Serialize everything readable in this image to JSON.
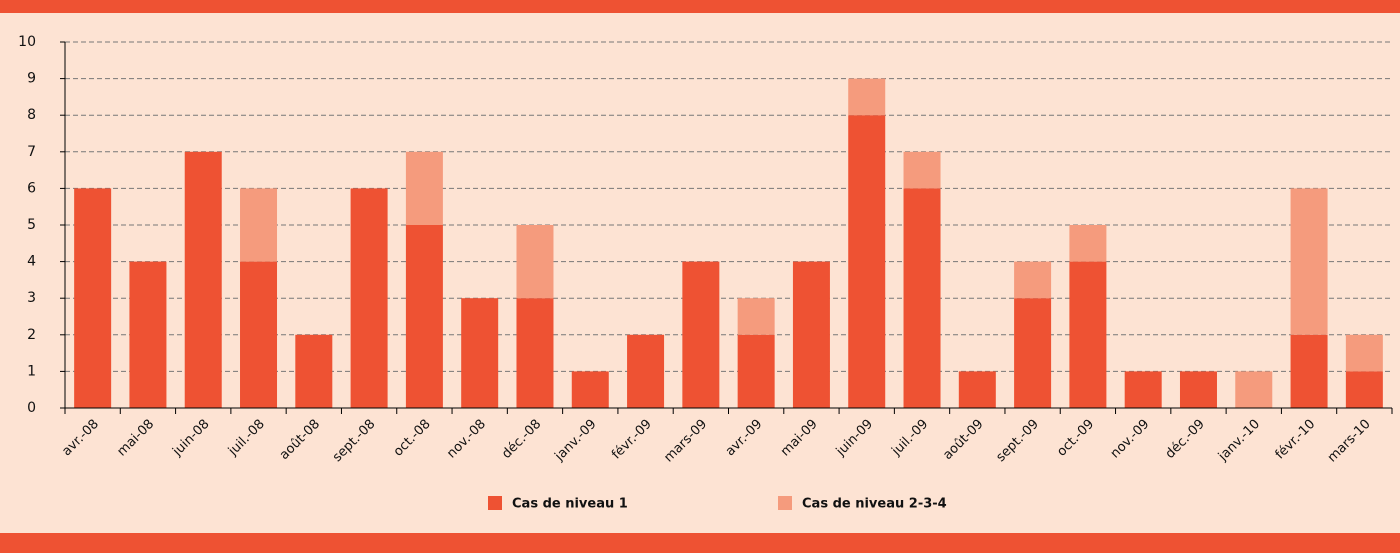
{
  "chart_data": {
    "type": "stacked-bar",
    "categories": [
      "avr.-08",
      "mai-08",
      "juin-08",
      "juil.-08",
      "août-08",
      "sept.-08",
      "oct.-08",
      "nov.-08",
      "déc.-08",
      "janv.-09",
      "févr.-09",
      "mars-09",
      "avr.-09",
      "mai-09",
      "juin-09",
      "juil.-09",
      "août-09",
      "sept.-09",
      "oct.-09",
      "nov.-09",
      "déc.-09",
      "janv.-10",
      "févr.-10",
      "mars-10"
    ],
    "series": [
      {
        "name": "Cas de niveau 1",
        "color": "#ee5233",
        "values": [
          6,
          4,
          7,
          4,
          2,
          6,
          5,
          3,
          3,
          1,
          2,
          4,
          2,
          4,
          8,
          6,
          1,
          3,
          4,
          1,
          1,
          0,
          2,
          1
        ]
      },
      {
        "name": "Cas de niveau 2-3-4",
        "color": "#f59b7d",
        "values": [
          0,
          0,
          0,
          2,
          0,
          0,
          2,
          0,
          2,
          0,
          0,
          0,
          1,
          0,
          1,
          1,
          0,
          1,
          1,
          0,
          0,
          1,
          4,
          1
        ]
      }
    ],
    "ylim": [
      0,
      10
    ],
    "yticks": [
      0,
      1,
      2,
      3,
      4,
      5,
      6,
      7,
      8,
      9,
      10
    ],
    "grid": true
  }
}
